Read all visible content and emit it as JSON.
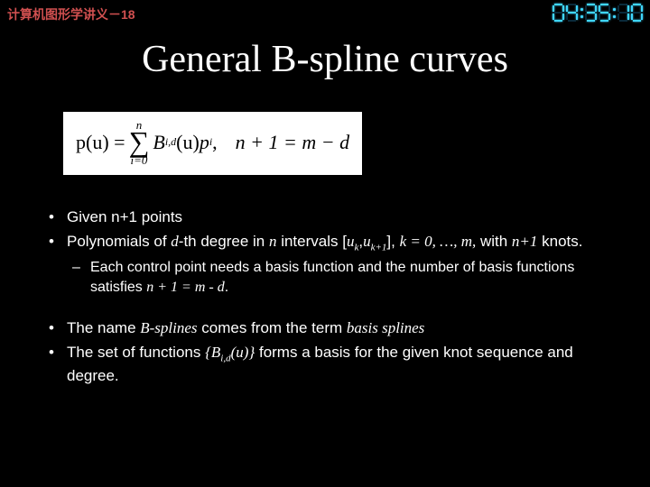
{
  "header": {
    "label": "计算机图形学讲义－18"
  },
  "timer": {
    "digits": [
      "0",
      "4",
      "3",
      "5",
      "1",
      "0"
    ],
    "colon1_on": true,
    "colon2_on": true,
    "digit_color_on": "#3fd6ff",
    "digit_color_off": "#0a2a3a",
    "segment_map": {
      "0": [
        "a",
        "b",
        "c",
        "d",
        "e",
        "f"
      ],
      "1": [
        "b",
        "c"
      ],
      "2": [
        "a",
        "b",
        "g",
        "e",
        "d"
      ],
      "3": [
        "a",
        "b",
        "g",
        "c",
        "d"
      ],
      "4": [
        "f",
        "g",
        "b",
        "c"
      ],
      "5": [
        "a",
        "f",
        "g",
        "c",
        "d"
      ],
      "6": [
        "a",
        "f",
        "g",
        "e",
        "c",
        "d"
      ],
      "7": [
        "a",
        "b",
        "c"
      ],
      "8": [
        "a",
        "b",
        "c",
        "d",
        "e",
        "f",
        "g"
      ],
      "9": [
        "a",
        "b",
        "c",
        "d",
        "f",
        "g"
      ]
    }
  },
  "title": "General B-spline curves",
  "formula": {
    "lhs": "p(u) = ",
    "sum_top": "n",
    "sum_bottom": "i=0",
    "term_B": "B",
    "term_B_sub": "i,d",
    "term_B_arg": "(u)",
    "term_p": "p",
    "term_p_sub": "i",
    "comma": " ,",
    "rhs": "n + 1 = m − d"
  },
  "bullets": {
    "a1": "Given n+1 points",
    "a2_pre": "Polynomials of ",
    "a2_d": "d",
    "a2_mid1": "-th degree in ",
    "a2_n": "n",
    "a2_mid2": " intervals [",
    "a2_uk": "u",
    "a2_uk_sub": "k",
    "a2_comma": ",",
    "a2_uk1": "u",
    "a2_uk1_sub": "k+1",
    "a2_mid3": "], ",
    "a2_k": "k = 0, …, m,",
    "a2_post": " with ",
    "a2_n1": "n+1",
    "a2_end": " knots.",
    "sub1_pre": "Each control point needs a basis function and the number of basis functions satisfies ",
    "sub1_eq": "n + 1 = m - d",
    "sub1_end": ".",
    "b1_pre": "The name ",
    "b1_em": "B-splines",
    "b1_mid": " comes from the term ",
    "b1_em2": "basis splines",
    "b2_pre": "The set of functions ",
    "b2_set_open": "{",
    "b2_B": "B",
    "b2_B_sub": "i,d",
    "b2_B_arg": "(u)",
    "b2_set_close": "}",
    "b2_post": " forms a basis for the given knot sequence and degree."
  },
  "colors": {
    "background": "#000000",
    "header_text": "#d05050",
    "body_text": "#ffffff",
    "formula_bg": "#ffffff",
    "formula_text": "#000000"
  }
}
